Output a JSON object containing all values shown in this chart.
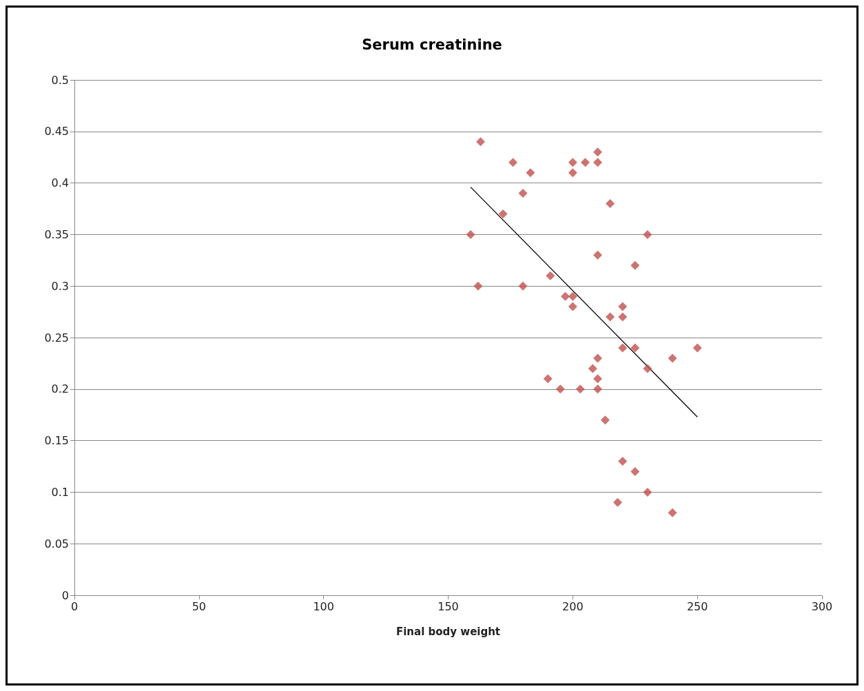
{
  "chart_data": {
    "type": "scatter",
    "title": "Serum creatinine",
    "xlabel": "Final body weight",
    "xlim": [
      0,
      300
    ],
    "xticks": [
      0,
      50,
      100,
      150,
      200,
      250,
      300
    ],
    "ylim": [
      0,
      0.5
    ],
    "yticks": [
      0,
      0.05,
      0.1,
      0.15,
      0.2,
      0.25,
      0.3,
      0.35,
      0.4,
      0.45,
      0.5
    ],
    "grid": "y",
    "series": [
      {
        "marker": "diamond",
        "color": "#c0504d",
        "x": [
          159,
          163,
          162,
          176,
          172,
          183,
          180,
          180,
          191,
          190,
          195,
          197,
          200,
          200,
          200,
          200,
          205,
          210,
          210,
          215,
          210,
          230,
          225,
          220,
          220,
          215,
          220,
          225,
          240,
          250,
          230,
          208,
          210,
          210,
          210,
          203,
          213,
          220,
          225,
          230,
          218,
          240
        ],
        "values": [
          0.35,
          0.44,
          0.3,
          0.42,
          0.37,
          0.41,
          0.39,
          0.3,
          0.31,
          0.21,
          0.2,
          0.29,
          0.29,
          0.28,
          0.42,
          0.41,
          0.42,
          0.43,
          0.42,
          0.38,
          0.33,
          0.35,
          0.32,
          0.28,
          0.27,
          0.27,
          0.24,
          0.24,
          0.23,
          0.24,
          0.22,
          0.22,
          0.23,
          0.21,
          0.2,
          0.2,
          0.17,
          0.13,
          0.12,
          0.1,
          0.09,
          0.08
        ]
      },
      {
        "type": "line",
        "color": "#000000",
        "x": [
          159,
          250
        ],
        "values": [
          0.396,
          0.173
        ]
      }
    ]
  }
}
